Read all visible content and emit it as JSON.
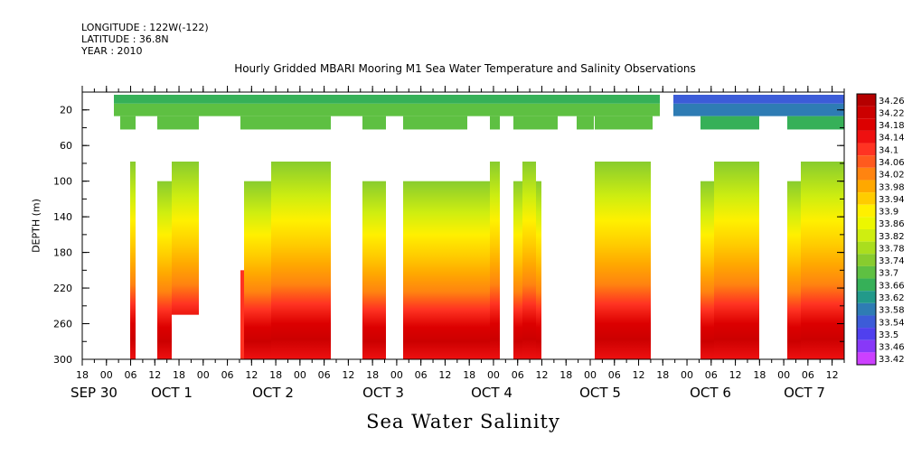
{
  "header": {
    "longitude": "LONGITUDE : 122W(-122)",
    "latitude": "LATITUDE : 36.8N",
    "year": "YEAR : 2010"
  },
  "title": "Hourly Gridded MBARI Mooring M1 Sea Water Temperature and Salinity Observations",
  "bottom_label": "Sea Water Salinity",
  "chart_data": {
    "type": "heatmap",
    "title": "Hourly Gridded MBARI Mooring M1 Sea Water Temperature and Salinity Observations",
    "xlabel": "",
    "ylabel": "DEPTH (m)",
    "y_ticks": [
      20,
      60,
      100,
      140,
      180,
      220,
      260,
      300
    ],
    "ylim": [
      300,
      0
    ],
    "x_hour_ticks": [
      "18",
      "00",
      "06",
      "12",
      "18",
      "00",
      "06",
      "12",
      "18",
      "00",
      "06",
      "12",
      "18",
      "00",
      "06",
      "12",
      "18",
      "00",
      "06",
      "12",
      "18",
      "00",
      "06",
      "12",
      "18",
      "00",
      "06",
      "12",
      "18",
      "00",
      "06",
      "12"
    ],
    "x_date_labels": [
      "SEP 30",
      "OCT 1",
      "OCT 2",
      "OCT 3",
      "OCT 4",
      "OCT 5",
      "OCT 6",
      "OCT 7"
    ],
    "colorbar": {
      "levels": [
        "34.26",
        "34.22",
        "34.18",
        "34.14",
        "34.1",
        "34.06",
        "34.02",
        "33.98",
        "33.94",
        "33.9",
        "33.86",
        "33.82",
        "33.78",
        "33.74",
        "33.7",
        "33.66",
        "33.62",
        "33.58",
        "33.54",
        "33.5",
        "33.46",
        "33.42"
      ],
      "colors": [
        "#b50000",
        "#cc0000",
        "#dc0000",
        "#ee1010",
        "#ff3322",
        "#ff5a1e",
        "#ff8410",
        "#ffa800",
        "#ffcc00",
        "#fff000",
        "#ecf700",
        "#cfee10",
        "#aade1e",
        "#88cc2e",
        "#5ec042",
        "#36b058",
        "#229a8a",
        "#2e7cb4",
        "#3c5cd8",
        "#5040ee",
        "#8838f8",
        "#cc40ff"
      ]
    },
    "profile": {
      "surface_20m": 33.76,
      "level_40m": 33.74,
      "level_100m": 33.86,
      "level_140m": 33.95,
      "level_180m": 34.05,
      "level_220m": 34.12,
      "level_260m": 34.18,
      "level_300m": 34.14
    }
  }
}
